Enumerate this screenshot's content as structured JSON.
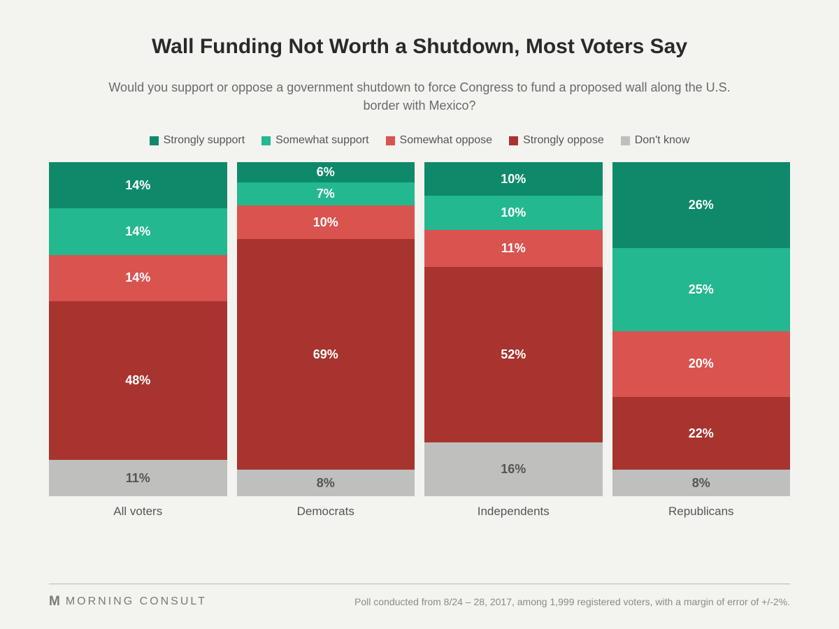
{
  "title": "Wall Funding Not Worth a Shutdown, Most Voters Say",
  "subtitle": "Would you support or oppose a government shutdown to force Congress to fund a proposed wall along the U.S. border with Mexico?",
  "legend": [
    {
      "label": "Strongly support",
      "color": "#0e8a6a"
    },
    {
      "label": "Somewhat support",
      "color": "#23b88f"
    },
    {
      "label": "Somewhat oppose",
      "color": "#d9534f"
    },
    {
      "label": "Strongly oppose",
      "color": "#a8342f"
    },
    {
      "label": "Don't know",
      "color": "#bfbfbd"
    }
  ],
  "chart": {
    "type": "stacked-bar-100",
    "background_color": "#f3f4f0",
    "label_fontsize": 18,
    "label_color_light": "#ffffff",
    "label_color_gray": "#555555",
    "categories": [
      {
        "name": "All voters",
        "segments": [
          {
            "value": 14,
            "color": "#0e8a6a",
            "text": "#ffffff"
          },
          {
            "value": 14,
            "color": "#23b88f",
            "text": "#ffffff"
          },
          {
            "value": 14,
            "color": "#d9534f",
            "text": "#ffffff"
          },
          {
            "value": 48,
            "color": "#a8342f",
            "text": "#ffffff"
          },
          {
            "value": 11,
            "color": "#bfbfbd",
            "text": "#555555"
          }
        ]
      },
      {
        "name": "Democrats",
        "segments": [
          {
            "value": 6,
            "color": "#0e8a6a",
            "text": "#ffffff"
          },
          {
            "value": 7,
            "color": "#23b88f",
            "text": "#ffffff"
          },
          {
            "value": 10,
            "color": "#d9534f",
            "text": "#ffffff"
          },
          {
            "value": 69,
            "color": "#a8342f",
            "text": "#ffffff"
          },
          {
            "value": 8,
            "color": "#bfbfbd",
            "text": "#555555"
          }
        ]
      },
      {
        "name": "Independents",
        "segments": [
          {
            "value": 10,
            "color": "#0e8a6a",
            "text": "#ffffff"
          },
          {
            "value": 10,
            "color": "#23b88f",
            "text": "#ffffff"
          },
          {
            "value": 11,
            "color": "#d9534f",
            "text": "#ffffff"
          },
          {
            "value": 52,
            "color": "#a8342f",
            "text": "#ffffff"
          },
          {
            "value": 16,
            "color": "#bfbfbd",
            "text": "#555555"
          }
        ]
      },
      {
        "name": "Republicans",
        "segments": [
          {
            "value": 26,
            "color": "#0e8a6a",
            "text": "#ffffff"
          },
          {
            "value": 25,
            "color": "#23b88f",
            "text": "#ffffff"
          },
          {
            "value": 20,
            "color": "#d9534f",
            "text": "#ffffff"
          },
          {
            "value": 22,
            "color": "#a8342f",
            "text": "#ffffff"
          },
          {
            "value": 8,
            "color": "#bfbfbd",
            "text": "#555555"
          }
        ]
      }
    ]
  },
  "brand_icon": "M",
  "brand_text": "MORNING CONSULT",
  "footnote": "Poll conducted from 8/24 – 28, 2017, among 1,999 registered voters, with a margin of error of +/-2%."
}
